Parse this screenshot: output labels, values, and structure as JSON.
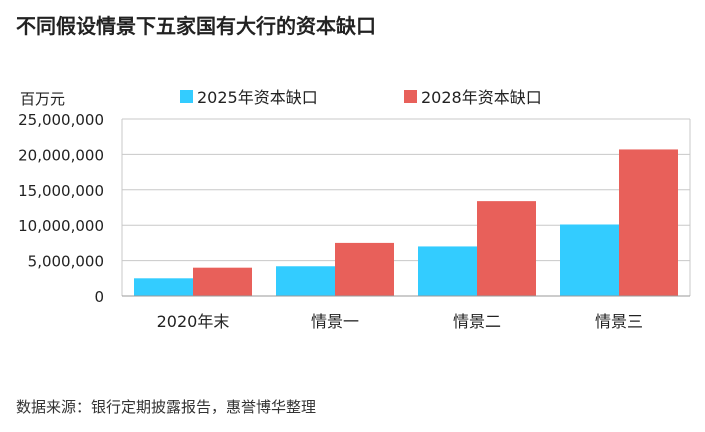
{
  "chart_data": {
    "type": "bar",
    "title": "不同假设情景下五家国有大行的资本缺口",
    "unit_label": "百万元",
    "categories": [
      "2020年末",
      "情景一",
      "情景二",
      "情景三"
    ],
    "series": [
      {
        "name": "2025年资本缺口",
        "values": [
          2500000,
          4200000,
          7000000,
          10100000
        ]
      },
      {
        "name": "2028年资本缺口",
        "values": [
          4000000,
          7500000,
          13400000,
          20700000
        ]
      }
    ],
    "yticks": [
      "25,000,000",
      "20,000,000",
      "15,000,000",
      "10,000,000",
      "5,000,000",
      "0"
    ],
    "ylim": [
      0,
      25000000
    ],
    "grid": true,
    "legend_position": "top-center",
    "source": "数据来源：银行定期披露报告，惠誉博华整理"
  },
  "colors": {
    "series_2025": "#33ccff",
    "series_2028": "#e8605a",
    "grid": "#c8c8c8",
    "axis": "#999999"
  }
}
